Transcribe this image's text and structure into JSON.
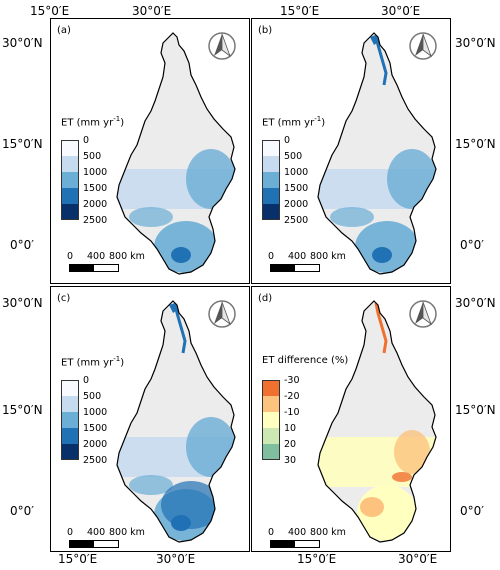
{
  "axes": {
    "top_x": [
      "15°0′E",
      "30°0′E"
    ],
    "bottom_x": [
      "15°0′E",
      "30°0′E"
    ],
    "left_y_top": [
      "30°0′N",
      "15°0′N",
      "0°0′"
    ],
    "left_y_bottom": [
      "30°0′N",
      "15°0′N",
      "0°0′"
    ],
    "right_y_top": [
      "30°0′N",
      "15°0′N",
      "0°0′"
    ],
    "right_y_bottom": [
      "30°0′N",
      "15°0′N",
      "0°0′"
    ]
  },
  "panels": [
    {
      "label": "(a)",
      "legend_title": "ET (mm yr",
      "legend_sup": "-1",
      "legend_title_end": ")",
      "legend": [
        "0",
        "500",
        "1000",
        "1500",
        "2000",
        "2500"
      ],
      "colors": [
        "#f7fbff",
        "#c6dbef",
        "#6baed6",
        "#2171b5",
        "#08306b"
      ],
      "scale": [
        "0",
        "400",
        "800 km"
      ]
    },
    {
      "label": "(b)",
      "legend_title": "ET (mm yr",
      "legend_sup": "-1",
      "legend_title_end": ")",
      "legend": [
        "0",
        "500",
        "1000",
        "1500",
        "2000",
        "2500"
      ],
      "colors": [
        "#f7fbff",
        "#c6dbef",
        "#6baed6",
        "#2171b5",
        "#08306b"
      ],
      "scale": [
        "0",
        "400",
        "800 km"
      ]
    },
    {
      "label": "(c)",
      "legend_title": "ET (mm yr",
      "legend_sup": "-1",
      "legend_title_end": ")",
      "legend": [
        "0",
        "500",
        "1000",
        "1500",
        "2000",
        "2500"
      ],
      "colors": [
        "#f7fbff",
        "#c6dbef",
        "#6baed6",
        "#2171b5",
        "#08306b"
      ],
      "scale": [
        "0",
        "400",
        "800 km"
      ]
    },
    {
      "label": "(d)",
      "legend_title": "ET difference (%)",
      "legend_sup": "",
      "legend_title_end": "",
      "legend": [
        "-30",
        "-20",
        "-10",
        "10",
        "20",
        "30"
      ],
      "colors": [
        "#f07030",
        "#fdc37e",
        "#ffffbf",
        "#cce8b3",
        "#7fbfa0"
      ],
      "scale": [
        "0",
        "400",
        "800 km"
      ]
    }
  ]
}
